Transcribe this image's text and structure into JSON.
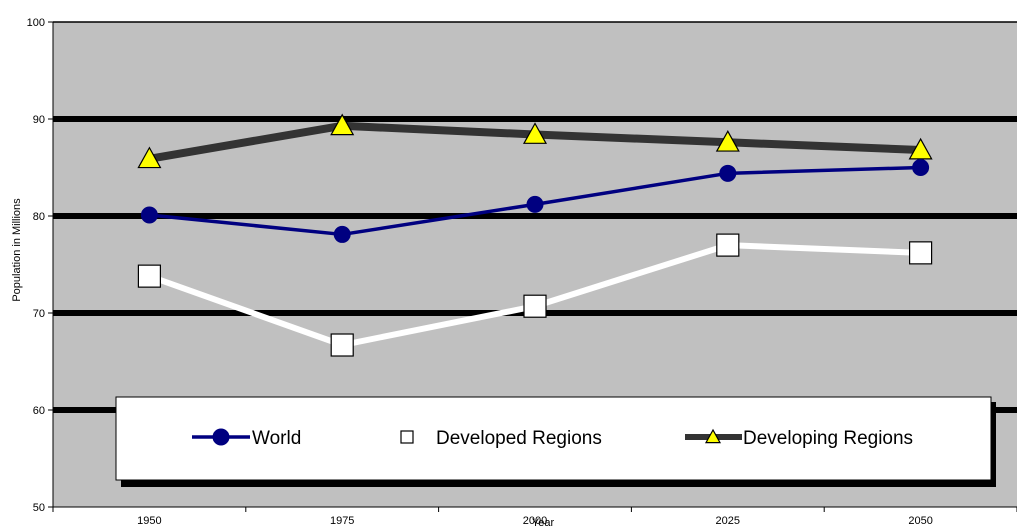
{
  "chart_data": {
    "type": "line",
    "xlabel": "Year",
    "ylabel": "Population in Millions",
    "categories": [
      "1950",
      "1975",
      "2000",
      "2025",
      "2050"
    ],
    "ylim": [
      50,
      100
    ],
    "yticks": [
      "50",
      "60",
      "70",
      "80",
      "90",
      "100"
    ],
    "grid": true,
    "legend_position": "bottom",
    "colors": {
      "plot_background": "#c0c0c0",
      "gridline": "#000000",
      "world": "#000080",
      "developed": "#ffffff",
      "developing_line": "#333333",
      "developing_marker": "#ffff00"
    },
    "series": [
      {
        "name": "World",
        "marker": "circle",
        "values": [
          80.1,
          78.1,
          81.2,
          84.4,
          85.0
        ]
      },
      {
        "name": "Developed Regions",
        "marker": "square",
        "values": [
          73.8,
          66.7,
          70.7,
          77.0,
          76.2
        ]
      },
      {
        "name": "Developing Regions",
        "marker": "triangle",
        "values": [
          85.9,
          89.3,
          88.4,
          87.6,
          86.8
        ]
      }
    ]
  }
}
